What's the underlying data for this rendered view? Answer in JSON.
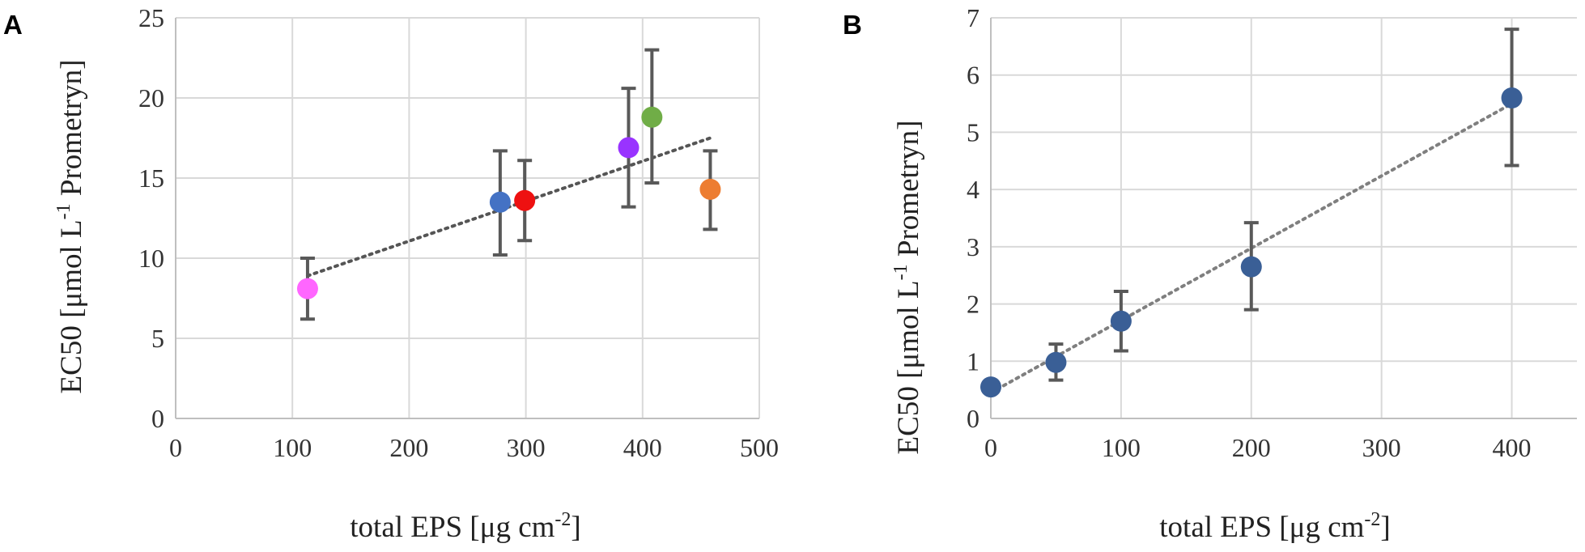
{
  "figure": {
    "panels": [
      {
        "id": "A",
        "label": "A"
      },
      {
        "id": "B",
        "label": "B"
      }
    ]
  },
  "chart_data": [
    {
      "panel": "A",
      "type": "scatter",
      "title": "",
      "xlabel_main": "total EPS [μg cm",
      "xlabel_sup": "-2",
      "xlabel_end": "]",
      "ylabel_main": "EC50 [μmol L",
      "ylabel_sup": "-1",
      "ylabel_end": " Prometryn]",
      "xlim": [
        0,
        500
      ],
      "ylim": [
        0,
        25
      ],
      "xticks": [
        0,
        100,
        200,
        300,
        400,
        500
      ],
      "yticks": [
        0,
        5,
        10,
        15,
        20,
        25
      ],
      "grid": true,
      "points": [
        {
          "x": 113,
          "y": 8.1,
          "err_low": 6.2,
          "err_high": 10.0,
          "color": "#ff66ff"
        },
        {
          "x": 278,
          "y": 13.5,
          "err_low": 10.2,
          "err_high": 16.7,
          "color": "#4472c4"
        },
        {
          "x": 299,
          "y": 13.6,
          "err_low": 11.1,
          "err_high": 16.1,
          "color": "#ee1111"
        },
        {
          "x": 388,
          "y": 16.9,
          "err_low": 13.2,
          "err_high": 20.6,
          "color": "#9933ff"
        },
        {
          "x": 408,
          "y": 18.8,
          "err_low": 14.7,
          "err_high": 23.0,
          "color": "#70ad47"
        },
        {
          "x": 458,
          "y": 14.3,
          "err_low": 11.8,
          "err_high": 16.7,
          "color": "#ed7d31"
        }
      ],
      "trendline": {
        "x": [
          113,
          458
        ],
        "y": [
          8.9,
          17.5
        ]
      }
    },
    {
      "panel": "B",
      "type": "scatter",
      "title": "",
      "xlabel_main": "total EPS [μg cm",
      "xlabel_sup": "-2",
      "xlabel_end": "]",
      "ylabel_main": "EC50 [μmol L",
      "ylabel_sup": "-1",
      "ylabel_end": " Prometryn]",
      "xlim": [
        0,
        450
      ],
      "ylim": [
        0,
        7
      ],
      "xticks": [
        0,
        100,
        200,
        300,
        400
      ],
      "yticks": [
        0,
        1,
        2,
        3,
        4,
        5,
        6,
        7
      ],
      "grid": true,
      "points": [
        {
          "x": 0,
          "y": 0.55,
          "err_low": null,
          "err_high": null,
          "color": "#3a5f96"
        },
        {
          "x": 50,
          "y": 0.98,
          "err_low": 0.67,
          "err_high": 1.3,
          "color": "#3a5f96"
        },
        {
          "x": 100,
          "y": 1.7,
          "err_low": 1.18,
          "err_high": 2.22,
          "color": "#3a5f96"
        },
        {
          "x": 200,
          "y": 2.65,
          "err_low": 1.9,
          "err_high": 3.42,
          "color": "#3a5f96"
        },
        {
          "x": 400,
          "y": 5.6,
          "err_low": 4.42,
          "err_high": 6.8,
          "color": "#3a5f96"
        }
      ],
      "trendline": {
        "x": [
          0,
          400
        ],
        "y": [
          0.45,
          5.5
        ]
      }
    }
  ]
}
